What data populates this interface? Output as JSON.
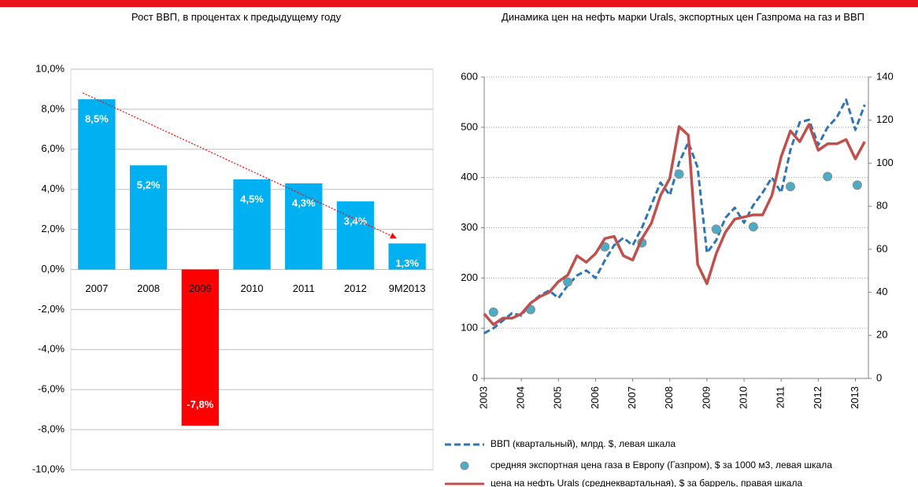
{
  "chart_data": [
    {
      "type": "bar",
      "title": "Рост ВВП, в процентах к предыдущему году",
      "categories": [
        "2007",
        "2008",
        "2009",
        "2010",
        "2011",
        "2012",
        "9M2013"
      ],
      "values": [
        8.5,
        5.2,
        -7.8,
        4.5,
        4.3,
        3.4,
        1.3
      ],
      "value_labels": [
        "8,5%",
        "5,2%",
        "-7,8%",
        "4,5%",
        "4,3%",
        "3,4%",
        "1,3%"
      ],
      "colors": [
        "#00b0f0",
        "#00b0f0",
        "#ff0000",
        "#00b0f0",
        "#00b0f0",
        "#00b0f0",
        "#00b0f0"
      ],
      "ylim": [
        -10,
        10
      ],
      "yticks": [
        {
          "value": -10,
          "label": "-10,0%"
        },
        {
          "value": -8,
          "label": "-8,0%"
        },
        {
          "value": -6,
          "label": "-6,0%"
        },
        {
          "value": -4,
          "label": "-4,0%"
        },
        {
          "value": -2,
          "label": "-2,0%"
        },
        {
          "value": 0,
          "label": "0,0%"
        },
        {
          "value": 2,
          "label": "2,0%"
        },
        {
          "value": 4,
          "label": "4,0%"
        },
        {
          "value": 6,
          "label": "6,0%"
        },
        {
          "value": 8,
          "label": "8,0%"
        },
        {
          "value": 10,
          "label": "10,0%"
        }
      ],
      "grid": true
    },
    {
      "type": "line",
      "title": "Динамика цен на нефть марки Urals, экспортных цен Газпрома на газ и ВВП",
      "xlim": [
        2003,
        2013.35
      ],
      "xticks": [
        2003,
        2004,
        2005,
        2006,
        2007,
        2008,
        2009,
        2010,
        2011,
        2012,
        2013
      ],
      "ylim": [
        0,
        600
      ],
      "yticks": [
        0,
        100,
        200,
        300,
        400,
        500,
        600
      ],
      "y2lim": [
        0,
        140
      ],
      "y2ticks": [
        0,
        20,
        40,
        60,
        80,
        100,
        120,
        140
      ],
      "grid": true,
      "series": [
        {
          "name": "ВВП (квартальный), млрд. $, левая шкала",
          "color": "#2e75b6",
          "style": "dashed",
          "axis": "y",
          "x": [
            2003,
            2003.25,
            2003.5,
            2003.75,
            2004,
            2004.25,
            2004.5,
            2004.75,
            2005,
            2005.25,
            2005.5,
            2005.75,
            2006,
            2006.25,
            2006.5,
            2006.75,
            2007,
            2007.25,
            2007.5,
            2007.75,
            2008,
            2008.25,
            2008.5,
            2008.75,
            2009,
            2009.25,
            2009.5,
            2009.75,
            2010,
            2010.25,
            2010.5,
            2010.75,
            2011,
            2011.25,
            2011.5,
            2011.75,
            2012,
            2012.25,
            2012.5,
            2012.75,
            2013,
            2013.25
          ],
          "values": [
            90,
            100,
            115,
            130,
            125,
            150,
            165,
            175,
            160,
            185,
            205,
            215,
            200,
            235,
            265,
            280,
            265,
            300,
            345,
            390,
            365,
            430,
            470,
            420,
            250,
            275,
            320,
            340,
            310,
            345,
            370,
            400,
            370,
            455,
            510,
            515,
            465,
            500,
            520,
            555,
            495,
            545
          ]
        },
        {
          "name": "средняя экспортная цена газа в Европу (Газпром), $ за 1000 м3, левая шкала",
          "color": "#4bacc6",
          "style": "marker",
          "axis": "y",
          "x": [
            2003.25,
            2004.25,
            2005.25,
            2006.25,
            2007.25,
            2008.25,
            2009.25,
            2010.25,
            2011.25,
            2012.25,
            2013.05
          ],
          "values": [
            132,
            137,
            192,
            262,
            270,
            407,
            297,
            302,
            382,
            402,
            385
          ]
        },
        {
          "name": "цена на нефть Urals (среднеквартальная), $ за баррель, правая шкала",
          "color": "#c0504d",
          "style": "solid",
          "axis": "y2",
          "x": [
            2003,
            2003.25,
            2003.5,
            2003.75,
            2004,
            2004.25,
            2004.5,
            2004.75,
            2005,
            2005.25,
            2005.5,
            2005.75,
            2006,
            2006.25,
            2006.5,
            2006.75,
            2007,
            2007.25,
            2007.5,
            2007.75,
            2008,
            2008.25,
            2008.5,
            2008.75,
            2009,
            2009.25,
            2009.5,
            2009.75,
            2010,
            2010.25,
            2010.5,
            2010.75,
            2011,
            2011.25,
            2011.5,
            2011.75,
            2012,
            2012.25,
            2012.5,
            2012.75,
            2013,
            2013.25
          ],
          "values": [
            30,
            25,
            28,
            28,
            30,
            35,
            38,
            40,
            45,
            48,
            57,
            54,
            58,
            65,
            66,
            57,
            55,
            65,
            72,
            85,
            93,
            117,
            113,
            53,
            44,
            58,
            68,
            74,
            75,
            76,
            76,
            85,
            103,
            115,
            110,
            118,
            106,
            109,
            109,
            111,
            102,
            110
          ]
        }
      ]
    }
  ]
}
